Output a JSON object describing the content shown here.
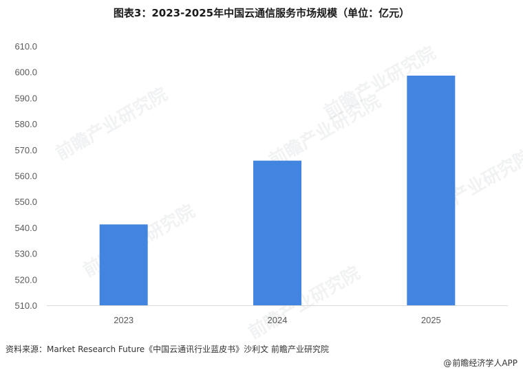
{
  "title": "图表3：2023-2025年中国云通信服务市场规模（单位：亿元）",
  "source": "资料来源：Market Research Future《中国云通讯行业蓝皮书》沙利文 前瞻产业研究院",
  "brand": {
    "icon": "at-icon",
    "symbol": "@",
    "text": "前瞻经济学人APP"
  },
  "watermark_text": "前瞻产业研究院",
  "colors": {
    "bar": "#4285E0",
    "axis": "#D9D9D9",
    "tick_text": "#595959"
  },
  "chart_data": {
    "type": "bar",
    "title": "图表3：2023-2025年中国云通信服务市场规模（单位：亿元）",
    "categories": [
      "2023",
      "2024",
      "2025"
    ],
    "values": [
      541.2,
      565.8,
      598.6
    ],
    "xlabel": "",
    "ylabel": "",
    "ylim": [
      510,
      610
    ],
    "yticks": [
      "510.0",
      "520.0",
      "530.0",
      "540.0",
      "550.0",
      "560.0",
      "570.0",
      "580.0",
      "590.0",
      "600.0",
      "610.0"
    ],
    "grid": false,
    "legend": "none"
  }
}
